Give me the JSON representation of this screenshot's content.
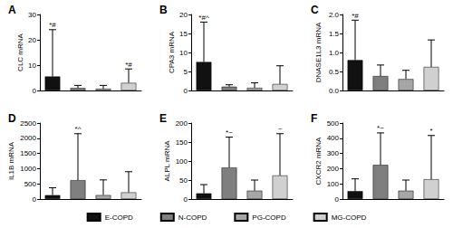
{
  "chart_data": [
    {
      "type": "bar",
      "title": "A",
      "y_label": "CLC mRNA",
      "categories": [
        "E-COPD",
        "N-COPD",
        "PG-COPD",
        "MG-COPD"
      ],
      "colors": [
        "#111111",
        "#7f7f7f",
        "#a6a6a6",
        "#d0d0d0"
      ],
      "values": [
        5.5,
        1.0,
        0.7,
        3.0
      ],
      "error_top": [
        24,
        2,
        2,
        8.5
      ],
      "annotations": [
        "*#",
        null,
        null,
        "*#"
      ],
      "ylim": [
        0,
        30
      ],
      "yticks": [
        0,
        10,
        20,
        30
      ],
      "grid": false,
      "tick_labels": "y",
      "legend": "bottom"
    },
    {
      "type": "bar",
      "title": "B",
      "y_label": "CPA3 mRNA",
      "categories": [
        "E-COPD",
        "N-COPD",
        "PG-COPD",
        "MG-COPD"
      ],
      "colors": [
        "#111111",
        "#7f7f7f",
        "#a6a6a6",
        "#d0d0d0"
      ],
      "values": [
        7.5,
        1.0,
        0.7,
        1.7
      ],
      "error_top": [
        18,
        1.5,
        2,
        6.5
      ],
      "annotations": [
        "*#^",
        null,
        null,
        null
      ],
      "ylim": [
        0,
        20
      ],
      "yticks": [
        0,
        5,
        10,
        15,
        20
      ],
      "grid": false,
      "tick_labels": "y",
      "legend": "bottom"
    },
    {
      "type": "bar",
      "title": "C",
      "y_label": "DNASE1L3 mRNA",
      "categories": [
        "E-COPD",
        "N-COPD",
        "PG-COPD",
        "MG-COPD"
      ],
      "colors": [
        "#111111",
        "#7f7f7f",
        "#a6a6a6",
        "#d0d0d0"
      ],
      "values": [
        0.8,
        0.38,
        0.3,
        0.62
      ],
      "error_top": [
        1.85,
        0.67,
        0.53,
        1.33
      ],
      "annotations": [
        "*#",
        null,
        null,
        null
      ],
      "ylim": [
        0,
        2
      ],
      "yticks": [
        {
          "value": 0,
          "label": "0.0"
        },
        {
          "value": 0.5,
          "label": "0.5"
        },
        {
          "value": 1,
          "label": "1.0"
        },
        {
          "value": 1.5,
          "label": "1.5"
        },
        {
          "value": 2,
          "label": "2.0"
        }
      ],
      "grid": false,
      "tick_labels": "y",
      "legend": "bottom"
    },
    {
      "type": "bar",
      "title": "D",
      "y_label": "IL1B mRNA",
      "categories": [
        "E-COPD",
        "N-COPD",
        "PG-COPD",
        "MG-COPD"
      ],
      "colors": [
        "#111111",
        "#7f7f7f",
        "#a6a6a6",
        "#d0d0d0"
      ],
      "values": [
        130,
        620,
        130,
        220
      ],
      "error_top": [
        370,
        2150,
        630,
        900
      ],
      "annotations": [
        null,
        "*^",
        null,
        null
      ],
      "ylim": [
        0,
        2500
      ],
      "yticks": [
        0,
        500,
        1000,
        1500,
        2000,
        2500
      ],
      "grid": false,
      "tick_labels": "y",
      "legend": "bottom"
    },
    {
      "type": "bar",
      "title": "E",
      "y_label": "ALPL mRNA",
      "categories": [
        "E-COPD",
        "N-COPD",
        "PG-COPD",
        "MG-COPD"
      ],
      "colors": [
        "#111111",
        "#7f7f7f",
        "#a6a6a6",
        "#d0d0d0"
      ],
      "values": [
        15,
        83,
        22,
        62
      ],
      "error_top": [
        38,
        163,
        50,
        172
      ],
      "annotations": [
        null,
        "*~",
        null,
        "~"
      ],
      "ylim": [
        0,
        200
      ],
      "yticks": [
        0,
        50,
        100,
        150,
        200
      ],
      "grid": false,
      "tick_labels": "y",
      "legend": "bottom"
    },
    {
      "type": "bar",
      "title": "F",
      "y_label": "CXCR2 mRNA",
      "categories": [
        "E-COPD",
        "N-COPD",
        "PG-COPD",
        "MG-COPD"
      ],
      "colors": [
        "#111111",
        "#7f7f7f",
        "#a6a6a6",
        "#d0d0d0"
      ],
      "values": [
        52,
        225,
        55,
        130
      ],
      "error_top": [
        133,
        435,
        125,
        418
      ],
      "annotations": [
        null,
        "*~",
        null,
        "*"
      ],
      "ylim": [
        0,
        500
      ],
      "yticks": [
        0,
        100,
        200,
        300,
        400,
        500
      ],
      "grid": false,
      "tick_labels": "y",
      "legend": "bottom"
    }
  ]
}
